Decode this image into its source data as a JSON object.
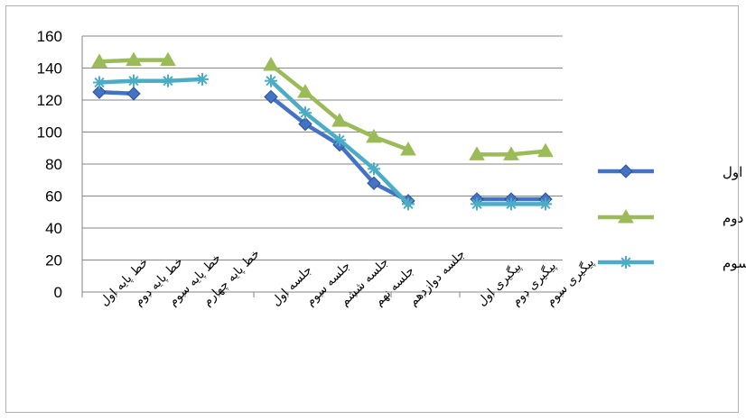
{
  "chart_data": {
    "type": "line",
    "categories": [
      "خط پایه اول",
      "خط پایه دوم",
      "خط پایه سوم",
      "خط پایه چهارم",
      "",
      "جلسه اول",
      "جلسه سوم",
      "جلسه ششم",
      "جلسه نهم",
      "جلسه دوازدهم",
      "",
      "پیگیری اول",
      "پیگیری دوم",
      "پیگیری سوم"
    ],
    "series": [
      {
        "name": "بیمار اول",
        "color": "#4472C4",
        "marker": "diamond",
        "values": [
          125,
          124,
          null,
          null,
          null,
          122,
          105,
          92,
          68,
          57,
          null,
          58,
          58,
          58
        ]
      },
      {
        "name": "بیمار دوم",
        "color": "#9BBB59",
        "marker": "triangle",
        "values": [
          144,
          145,
          145,
          null,
          null,
          142,
          125,
          107,
          97,
          89,
          null,
          86,
          86,
          88
        ]
      },
      {
        "name": "بیمار سوم",
        "color": "#4BACC6",
        "marker": "star",
        "values": [
          131,
          132,
          132,
          133,
          null,
          132,
          112,
          95,
          77,
          55,
          null,
          55,
          55,
          55
        ]
      }
    ],
    "ylim": [
      0,
      160
    ],
    "yticks": [
      0,
      20,
      40,
      60,
      80,
      100,
      120,
      140,
      160
    ],
    "grid": true,
    "legend_position": "right"
  }
}
